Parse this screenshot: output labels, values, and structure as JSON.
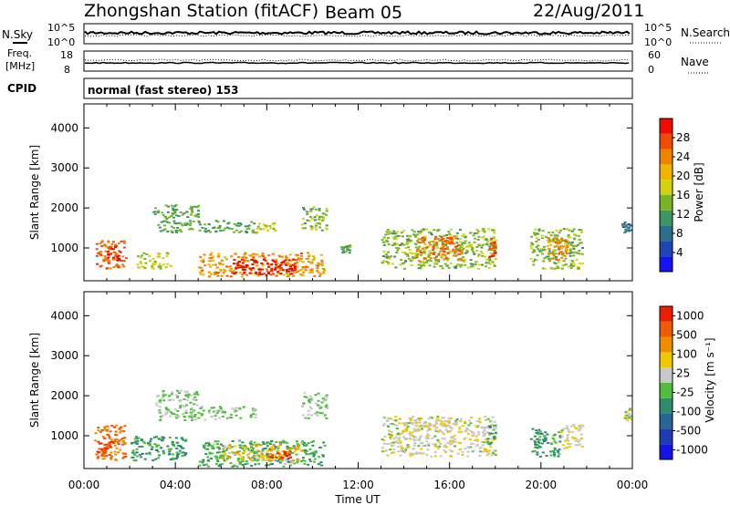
{
  "header": {
    "station": "Zhongshan Station (fitACF)",
    "beam": "Beam 05",
    "date": "22/Aug/2011"
  },
  "panels": {
    "nsky": {
      "left_label": "N.Sky",
      "left_ticks": [
        "10^5",
        "10^0"
      ],
      "right_label": "N.Search",
      "right_ticks": [
        "10^5",
        "10^0"
      ]
    },
    "freq": {
      "left_label_line1": "Freq.",
      "left_label_line2": "[MHz]",
      "left_ticks": [
        "18",
        "8"
      ],
      "right_label": "Nave",
      "right_ticks": [
        "60",
        "0"
      ]
    },
    "cpid": {
      "label": "CPID",
      "text": "normal (fast stereo) 153"
    }
  },
  "colors": {
    "power_scale": [
      "#1414f0",
      "#1e46b4",
      "#2d6e8c",
      "#3c9664",
      "#78b428",
      "#d2d214",
      "#f0b400",
      "#f08200",
      "#f04b00",
      "#f00a00"
    ],
    "velocity_scale": [
      "#1414e6",
      "#1e3cb4",
      "#286496",
      "#2d8c6e",
      "#50be3c",
      "#c8c8c8",
      "#f0c800",
      "#f08c00",
      "#f05a00",
      "#f01e00"
    ]
  },
  "chart_data": [
    {
      "type": "heatmap",
      "title": "",
      "xlabel": "Time UT",
      "ylabel": "Slant Range [km]",
      "xlim": [
        0,
        24
      ],
      "ylim": [
        180,
        4600
      ],
      "x_ticks": [
        "00:00",
        "04:00",
        "08:00",
        "12:00",
        "16:00",
        "20:00",
        "00:00"
      ],
      "y_ticks": [
        "1000",
        "2000",
        "3000",
        "4000"
      ],
      "colorbar": {
        "label": "Power [dB]",
        "ticks": [
          "4",
          "8",
          "12",
          "16",
          "20",
          "24",
          "28"
        ],
        "range": [
          0,
          30
        ]
      },
      "patches": [
        {
          "x": [
            0.5,
            1.8
          ],
          "y": [
            500,
            1200
          ],
          "value": 24
        },
        {
          "x": [
            1.0,
            1.6
          ],
          "y": [
            700,
            1050
          ],
          "value": 28
        },
        {
          "x": [
            2.3,
            3.8
          ],
          "y": [
            500,
            900
          ],
          "value": 16
        },
        {
          "x": [
            3.0,
            5.0
          ],
          "y": [
            1750,
            2100
          ],
          "value": 12
        },
        {
          "x": [
            3.2,
            7.5
          ],
          "y": [
            1400,
            1700
          ],
          "value": 12
        },
        {
          "x": [
            5.0,
            10.5
          ],
          "y": [
            300,
            900
          ],
          "value": 22
        },
        {
          "x": [
            6.5,
            9.2
          ],
          "y": [
            350,
            750
          ],
          "value": 29
        },
        {
          "x": [
            7.5,
            8.5
          ],
          "y": [
            1400,
            1650
          ],
          "value": 16
        },
        {
          "x": [
            9.5,
            10.6
          ],
          "y": [
            1450,
            2050
          ],
          "value": 14
        },
        {
          "x": [
            11.2,
            11.6
          ],
          "y": [
            900,
            1100
          ],
          "value": 12
        },
        {
          "x": [
            13.0,
            18.0
          ],
          "y": [
            500,
            1500
          ],
          "value": 14
        },
        {
          "x": [
            14.5,
            16.5
          ],
          "y": [
            700,
            1300
          ],
          "value": 24
        },
        {
          "x": [
            17.7,
            18.0
          ],
          "y": [
            800,
            1300
          ],
          "value": 26
        },
        {
          "x": [
            19.5,
            21.8
          ],
          "y": [
            500,
            1500
          ],
          "value": 14
        },
        {
          "x": [
            20.2,
            21.2
          ],
          "y": [
            700,
            1300
          ],
          "value": 22
        },
        {
          "x": [
            23.5,
            23.9
          ],
          "y": [
            1400,
            1700
          ],
          "value": 8
        }
      ]
    },
    {
      "type": "heatmap",
      "title": "",
      "xlabel": "Time UT",
      "ylabel": "Slant Range [km]",
      "xlim": [
        0,
        24
      ],
      "ylim": [
        180,
        4600
      ],
      "x_ticks": [
        "00:00",
        "04:00",
        "08:00",
        "12:00",
        "16:00",
        "20:00",
        "00:00"
      ],
      "y_ticks": [
        "1000",
        "2000",
        "3000",
        "4000"
      ],
      "colorbar": {
        "label": "Velocity [m s⁻¹]",
        "ticks": [
          "1000",
          "500",
          "100",
          "25",
          "-25",
          "-100",
          "-500",
          "-1000"
        ],
        "range": [
          -1200,
          1200
        ]
      },
      "patches": [
        {
          "x": [
            0.4,
            1.8
          ],
          "y": [
            400,
            1300
          ],
          "value": 700
        },
        {
          "x": [
            0.5,
            1.2
          ],
          "y": [
            600,
            900
          ],
          "value": 1000
        },
        {
          "x": [
            2.0,
            4.5
          ],
          "y": [
            400,
            1000
          ],
          "value": -300
        },
        {
          "x": [
            3.0,
            5.0
          ],
          "y": [
            1750,
            2150
          ],
          "value": 0
        },
        {
          "x": [
            3.2,
            7.5
          ],
          "y": [
            1400,
            1750
          ],
          "value": 0
        },
        {
          "x": [
            5.0,
            10.5
          ],
          "y": [
            250,
            900
          ],
          "value": -200
        },
        {
          "x": [
            6.0,
            9.5
          ],
          "y": [
            400,
            800
          ],
          "value": 400
        },
        {
          "x": [
            8.0,
            9.0
          ],
          "y": [
            450,
            700
          ],
          "value": 1100
        },
        {
          "x": [
            9.5,
            10.6
          ],
          "y": [
            1450,
            2100
          ],
          "value": 0
        },
        {
          "x": [
            13.0,
            18.0
          ],
          "y": [
            500,
            1500
          ],
          "value": 150
        },
        {
          "x": [
            14.0,
            16.5
          ],
          "y": [
            1100,
            1400
          ],
          "value": 200
        },
        {
          "x": [
            17.6,
            18.0
          ],
          "y": [
            800,
            1300
          ],
          "value": -300
        },
        {
          "x": [
            19.5,
            20.8
          ],
          "y": [
            500,
            1200
          ],
          "value": -300
        },
        {
          "x": [
            20.8,
            21.8
          ],
          "y": [
            700,
            1300
          ],
          "value": 200
        },
        {
          "x": [
            23.6,
            23.9
          ],
          "y": [
            1400,
            1700
          ],
          "value": 100
        }
      ]
    }
  ]
}
